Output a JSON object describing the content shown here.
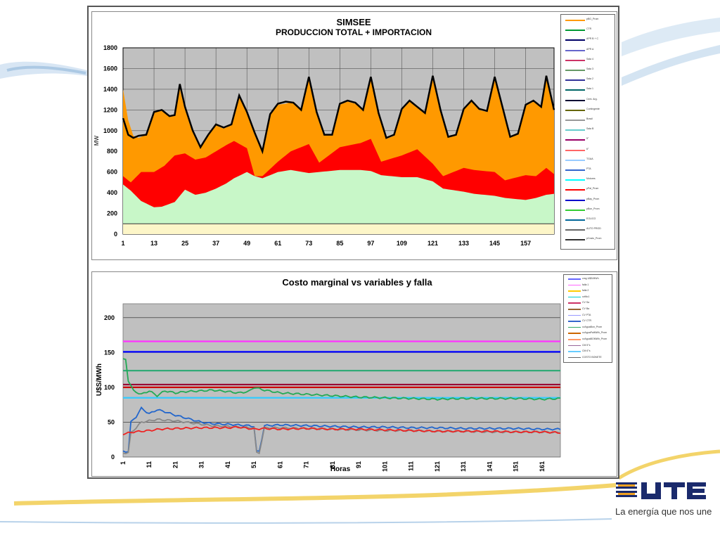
{
  "chart_data": [
    {
      "type": "area",
      "title": "SIMSEE",
      "subtitle": "PRODUCCION TOTAL + IMPORTACION",
      "ylabel": "MW",
      "xlabel": "",
      "ylim": [
        0,
        1800
      ],
      "yticks": [
        0,
        200,
        400,
        600,
        800,
        1000,
        1200,
        1400,
        1600,
        1800
      ],
      "xlim": [
        1,
        168
      ],
      "xticks": [
        1,
        13,
        25,
        37,
        49,
        61,
        73,
        85,
        97,
        109,
        121,
        133,
        145,
        157
      ],
      "grid": true,
      "legend_position": "right",
      "colors": {
        "base": "#fdf6c8",
        "green": "#c8f7c8",
        "red": "#ff0000",
        "orange": "#ff9900",
        "total_line": "#000000",
        "plot_bg": "#c0c0c0"
      },
      "legend": [
        "pBG_Prom",
        "CTR",
        "APR B + C",
        "APR A",
        "Sala 4",
        "Sala 3",
        "Sala 2",
        "Sala 1",
        "Cent. Arg.",
        "Contingente",
        "Brasil",
        "Sala B",
        "5°",
        "6°",
        "TGAA",
        "PTA",
        "Motores",
        "pPal_Prom",
        "pBay_Prom",
        "pBon_Prom",
        "EOLICO",
        "AUTO PROD",
        "pCosto_Prom"
      ],
      "legend_colors": [
        "#ff9900",
        "#009933",
        "#000066",
        "#6666cc",
        "#cc3366",
        "#669966",
        "#333399",
        "#006666",
        "#000033",
        "#666600",
        "#999999",
        "#66cccc",
        "#990066",
        "#ff6666",
        "#99ccff",
        "#3366cc",
        "#00ffff",
        "#ff0000",
        "#0000cc",
        "#33cc33",
        "#006699",
        "#666666",
        "#333333"
      ],
      "series": [
        {
          "name": "",
          "x": [
            1,
            8,
            25,
            35,
            49,
            60,
            73,
            85,
            97,
            115,
            121,
            140,
            157,
            168
          ],
          "values": [
            100,
            100,
            100,
            100,
            100,
            100,
            100,
            100,
            100,
            100,
            100,
            100,
            100,
            100
          ]
        },
        {
          "name": "",
          "x": [
            1,
            4,
            8,
            13,
            16,
            21,
            25,
            29,
            33,
            37,
            41,
            44,
            49,
            52,
            55,
            61,
            66,
            73,
            77,
            85,
            93,
            97,
            101,
            109,
            115,
            121,
            125,
            133,
            137,
            145,
            149,
            157,
            161,
            165,
            168
          ],
          "values": [
            480,
            420,
            320,
            260,
            265,
            310,
            430,
            380,
            400,
            440,
            490,
            540,
            600,
            560,
            540,
            600,
            620,
            590,
            600,
            620,
            620,
            610,
            570,
            550,
            550,
            510,
            440,
            410,
            390,
            370,
            350,
            330,
            350,
            380,
            390
          ]
        },
        {
          "name": "",
          "x": [
            1,
            4,
            8,
            13,
            17,
            21,
            25,
            29,
            33,
            37,
            41,
            44,
            49,
            52,
            55,
            61,
            66,
            73,
            77,
            85,
            93,
            97,
            101,
            109,
            115,
            121,
            125,
            133,
            137,
            145,
            149,
            157,
            161,
            165,
            168
          ],
          "values": [
            560,
            500,
            600,
            600,
            660,
            760,
            780,
            720,
            740,
            800,
            860,
            900,
            830,
            560,
            560,
            700,
            800,
            870,
            690,
            840,
            880,
            920,
            700,
            760,
            820,
            680,
            560,
            640,
            620,
            600,
            520,
            570,
            560,
            640,
            580
          ]
        },
        {
          "name": "",
          "x": [
            1,
            3,
            5,
            7,
            10,
            13,
            16,
            19,
            21,
            23,
            25,
            28,
            31,
            34,
            37,
            40,
            43,
            46,
            49,
            52,
            55,
            58,
            61,
            64,
            67,
            70,
            73,
            76,
            79,
            82,
            85,
            88,
            91,
            94,
            97,
            100,
            103,
            106,
            109,
            112,
            115,
            118,
            121,
            124,
            127,
            130,
            133,
            136,
            139,
            142,
            145,
            148,
            151,
            154,
            157,
            160,
            163,
            165,
            168
          ],
          "values": [
            1400,
            1100,
            950,
            930,
            960,
            1180,
            1200,
            1130,
            1150,
            1400,
            1200,
            1000,
            850,
            950,
            1050,
            1020,
            1050,
            1320,
            1200,
            1000,
            820,
            1150,
            1250,
            1260,
            1280,
            1200,
            1520,
            1180,
            960,
            950,
            1250,
            1280,
            1260,
            1200,
            1520,
            1160,
            920,
            950,
            1200,
            1280,
            1220,
            1160,
            1500,
            1200,
            940,
            950,
            1200,
            1280,
            1200,
            1180,
            1500,
            1220,
            940,
            960,
            1240,
            1280,
            1220,
            1500,
            1200
          ]
        },
        {
          "name": "",
          "x": [
            1,
            3,
            5,
            7,
            10,
            13,
            16,
            19,
            21,
            23,
            25,
            28,
            31,
            34,
            37,
            40,
            43,
            46,
            49,
            52,
            55,
            58,
            61,
            64,
            67,
            70,
            73,
            76,
            79,
            82,
            85,
            88,
            91,
            94,
            97,
            100,
            103,
            106,
            109,
            112,
            115,
            118,
            121,
            124,
            127,
            130,
            133,
            136,
            139,
            142,
            145,
            148,
            151,
            154,
            157,
            160,
            163,
            165,
            168
          ],
          "values": [
            1120,
            960,
            930,
            950,
            960,
            1180,
            1200,
            1140,
            1150,
            1450,
            1230,
            1000,
            840,
            960,
            1060,
            1030,
            1060,
            1340,
            1180,
            980,
            800,
            1160,
            1260,
            1280,
            1270,
            1200,
            1520,
            1180,
            960,
            960,
            1260,
            1290,
            1270,
            1200,
            1520,
            1170,
            930,
            960,
            1210,
            1290,
            1230,
            1170,
            1530,
            1200,
            940,
            960,
            1210,
            1290,
            1210,
            1190,
            1520,
            1230,
            940,
            970,
            1250,
            1290,
            1230,
            1530,
            1200
          ]
        }
      ]
    },
    {
      "type": "line",
      "title": "Costo marginal  vs variables  y falla",
      "ylabel": "U$S/MWh",
      "xlabel": "Horas",
      "ylim": [
        0,
        220
      ],
      "yticks": [
        0,
        50,
        100,
        150,
        200
      ],
      "xlim": [
        1,
        168
      ],
      "xticks": [
        1,
        11,
        21,
        31,
        41,
        51,
        61,
        71,
        81,
        91,
        101,
        111,
        121,
        131,
        141,
        151,
        161
      ],
      "grid": true,
      "legend_position": "right",
      "legend": [
        "cmg U$S/MWh",
        "falla 1",
        "falla 2",
        "cvMo1",
        "CV Sa",
        "CV Ba",
        "CV PTA",
        "CV CTR",
        "cvAguaBon_Prom",
        "cvAguaPalMWh_Prom",
        "cvAguaBOMWh_Prom",
        "CM 5°s",
        "CM 6°s",
        "COSTO BONETE"
      ],
      "legend_colors": [
        "#6666ff",
        "#ff66ff",
        "#ffcc00",
        "#00cccc",
        "#cc3366",
        "#996633",
        "#9999ff",
        "#3366cc",
        "#33aa66",
        "#cc6600",
        "#ff9966",
        "#996699",
        "#66ccff",
        "#666666"
      ],
      "series": [
        {
          "name": "",
          "x": [
            1,
            168
          ],
          "values": [
            166,
            166
          ]
        },
        {
          "name": "",
          "x": [
            1,
            168
          ],
          "values": [
            151,
            151
          ]
        },
        {
          "name": "",
          "x": [
            1,
            168
          ],
          "values": [
            124,
            124
          ]
        },
        {
          "name": "",
          "x": [
            1,
            168
          ],
          "values": [
            104,
            104
          ]
        },
        {
          "name": "",
          "x": [
            1,
            168
          ],
          "values": [
            100,
            100
          ]
        },
        {
          "name": "",
          "x": [
            1,
            168
          ],
          "values": [
            85,
            85
          ]
        },
        {
          "name": "",
          "x": [
            1,
            2,
            3,
            5,
            8,
            11,
            14,
            17,
            21,
            25,
            31,
            35,
            41,
            45,
            49,
            51,
            53,
            55,
            61,
            71,
            81,
            91,
            101,
            111,
            121,
            131,
            141,
            151,
            161,
            168
          ],
          "values": [
            140,
            140,
            110,
            95,
            90,
            95,
            88,
            95,
            92,
            94,
            95,
            96,
            94,
            92,
            94,
            100,
            98,
            96,
            92,
            90,
            88,
            86,
            85,
            84,
            83,
            84,
            84,
            84,
            83,
            84
          ]
        },
        {
          "name": "",
          "x": [
            1,
            3,
            4,
            6,
            8,
            11,
            14,
            17,
            21,
            25,
            31,
            35,
            41,
            45,
            49,
            51,
            52,
            53,
            55,
            61,
            71,
            81,
            91,
            101,
            111,
            121,
            131,
            141,
            151,
            161,
            168
          ],
          "values": [
            8,
            8,
            50,
            58,
            70,
            62,
            68,
            65,
            60,
            56,
            50,
            48,
            47,
            46,
            45,
            44,
            8,
            8,
            45,
            46,
            45,
            44,
            43,
            43,
            42,
            42,
            41,
            41,
            41,
            40,
            40
          ]
        },
        {
          "name": "",
          "x": [
            1,
            3,
            4,
            6,
            8,
            11,
            14,
            17,
            21,
            25,
            31,
            35,
            41,
            45,
            49,
            51,
            52,
            53,
            55,
            61,
            71,
            81,
            91,
            101,
            111,
            121,
            131,
            141,
            151,
            161,
            168
          ],
          "values": [
            6,
            6,
            35,
            42,
            50,
            52,
            54,
            53,
            52,
            50,
            47,
            45,
            44,
            43,
            42,
            42,
            6,
            6,
            42,
            42,
            41,
            40,
            39,
            38,
            38,
            37,
            37,
            36,
            36,
            36,
            35
          ]
        },
        {
          "name": "",
          "x": [
            1,
            5,
            11,
            15,
            21,
            31,
            41,
            45,
            51,
            55,
            61,
            71,
            81,
            91,
            101,
            111,
            121,
            131,
            141,
            151,
            161,
            168
          ],
          "values": [
            33,
            36,
            38,
            40,
            41,
            42,
            42,
            43,
            40,
            41,
            40,
            41,
            40,
            40,
            39,
            38,
            37,
            37,
            37,
            36,
            36,
            35
          ]
        }
      ],
      "series_colors": [
        "#ff33ff",
        "#0000ff",
        "#33aa77",
        "#990033",
        "#cc0000",
        "#33ccff",
        "#22aa55",
        "#2266cc",
        "#888888",
        "#ee2222"
      ]
    }
  ],
  "brand": {
    "tagline": "La energía que nos une"
  }
}
